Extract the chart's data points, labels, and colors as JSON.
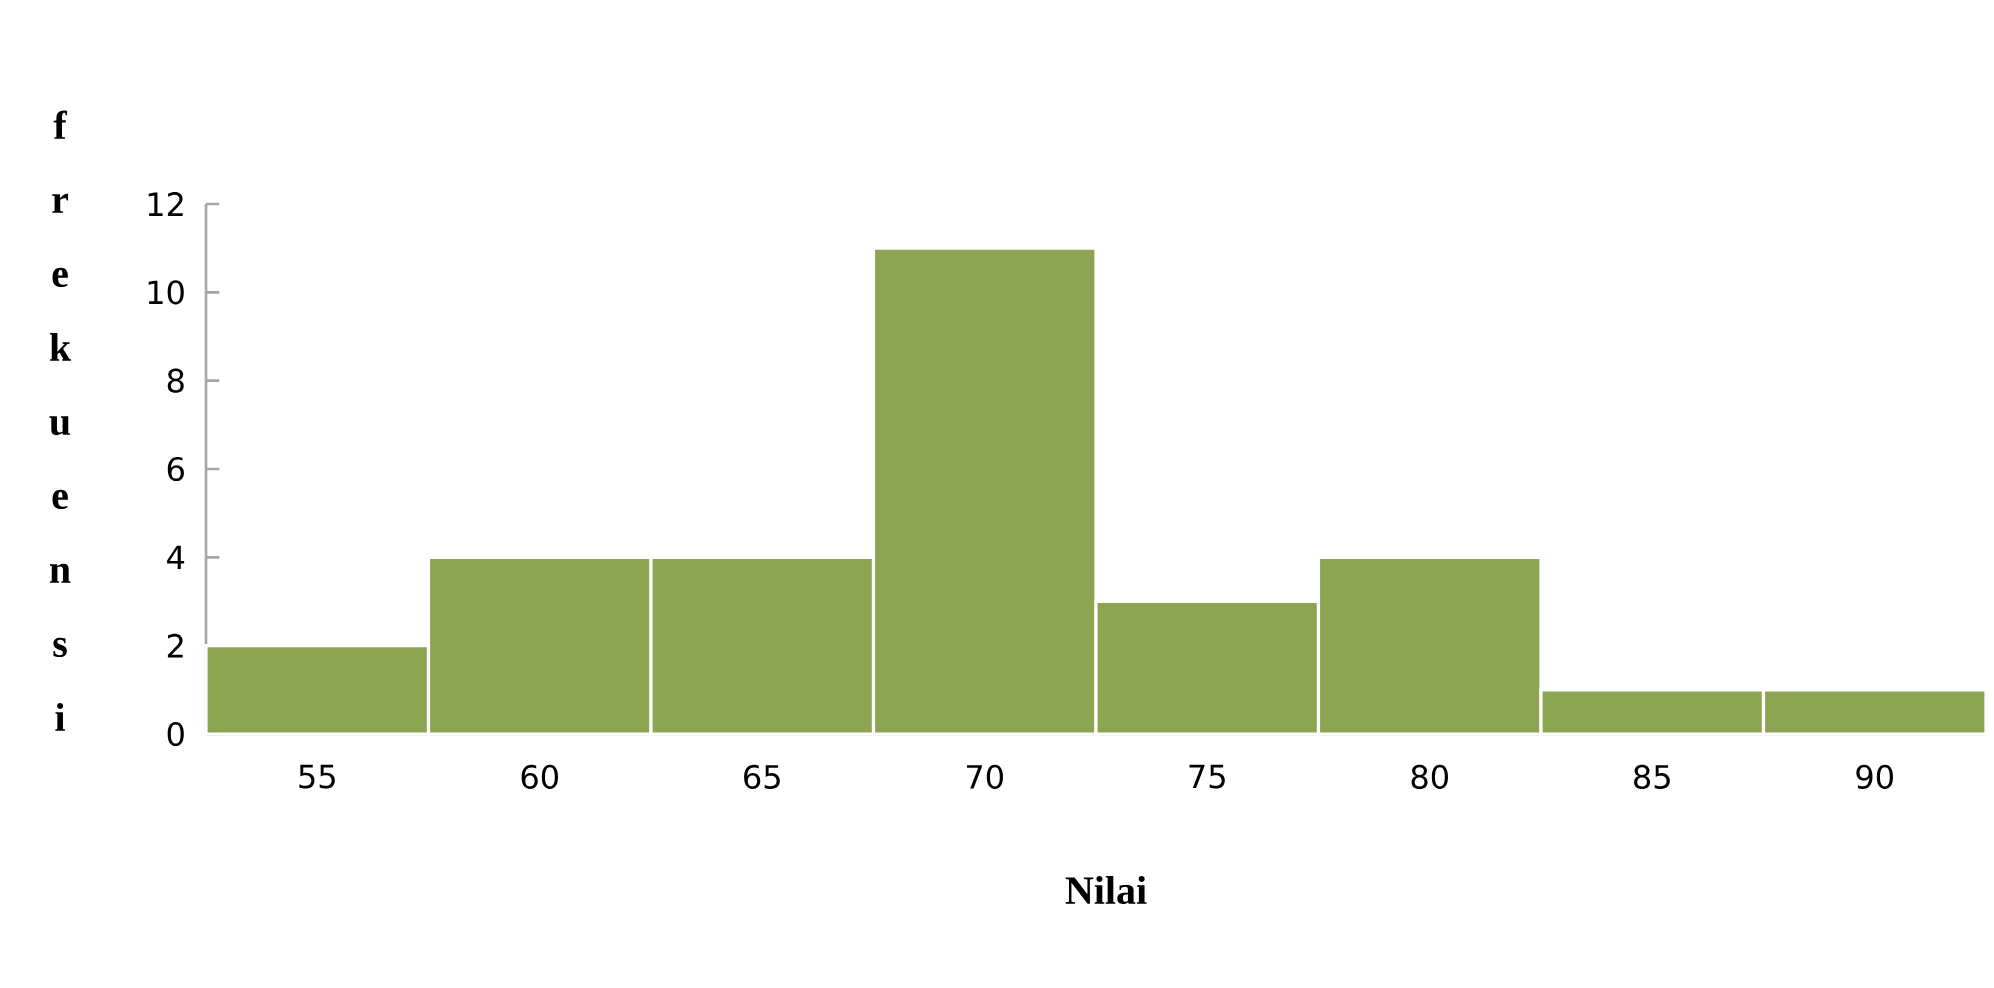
{
  "chart_data": {
    "type": "bar",
    "xlabel": "Nilai",
    "ylabel": "frekuensi",
    "categories": [
      "55",
      "60",
      "65",
      "70",
      "75",
      "80",
      "85",
      "90"
    ],
    "values": [
      2,
      4,
      4,
      11,
      3,
      4,
      1,
      1
    ],
    "color": "#8ba552",
    "ylim": [
      0,
      12
    ],
    "yticks": [
      0,
      2,
      4,
      6,
      8,
      10,
      12
    ],
    "grid": false
  }
}
